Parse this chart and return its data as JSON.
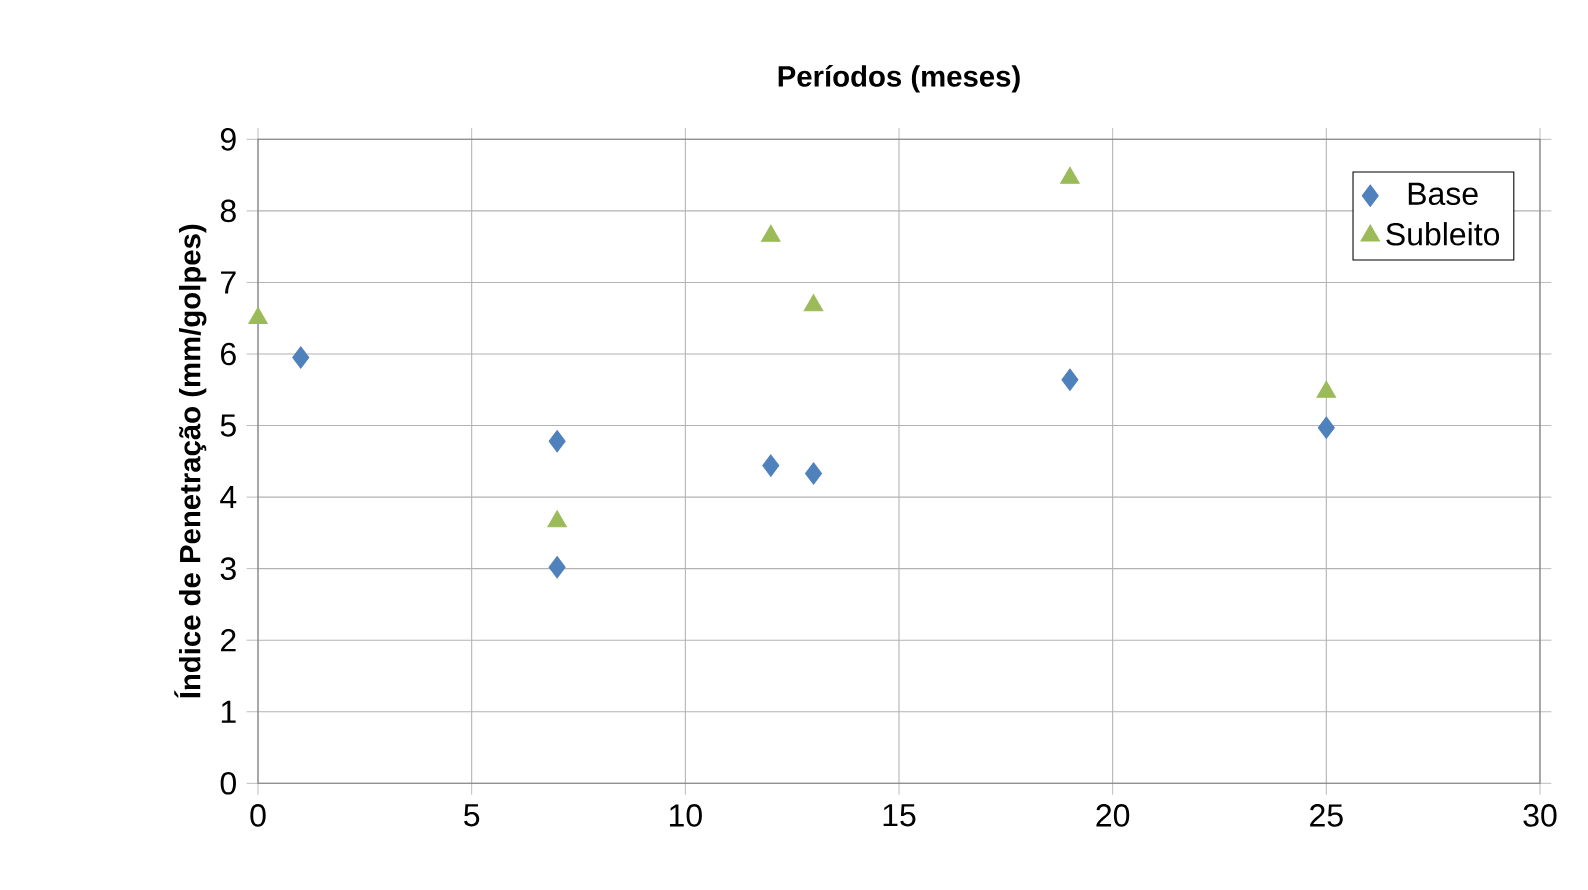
{
  "chart_data": {
    "type": "scatter",
    "title": "Períodos (meses)",
    "ylabel": "Índice de Penetração (mm/golpes)",
    "xlim": [
      0,
      30
    ],
    "xticks": [
      0,
      5,
      10,
      15,
      20,
      25,
      30
    ],
    "ylim": [
      0,
      9
    ],
    "yticks": [
      0,
      1,
      2,
      3,
      4,
      5,
      6,
      7,
      8,
      9
    ],
    "grid": true,
    "legend": "top right",
    "series": [
      {
        "name": "Base",
        "color": "#4f81bd",
        "marker": "diamond",
        "x": [
          1,
          7,
          7,
          12,
          13,
          19,
          25
        ],
        "values": [
          5.95,
          4.78,
          3.02,
          4.44,
          4.33,
          5.64,
          4.97
        ]
      },
      {
        "name": "Subleito",
        "color": "#9bbb59",
        "marker": "triangle",
        "x": [
          0,
          7,
          12,
          13,
          19,
          25
        ],
        "values": [
          6.5,
          3.66,
          7.65,
          6.68,
          8.46,
          5.47
        ]
      }
    ]
  }
}
